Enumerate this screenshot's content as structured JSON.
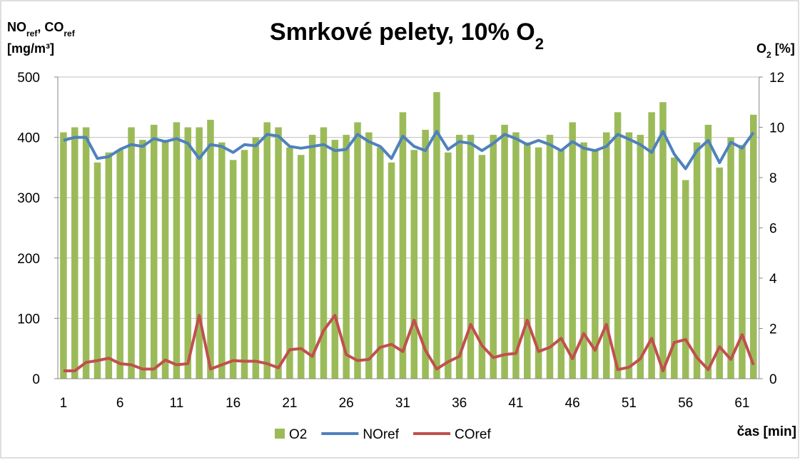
{
  "chart_data": {
    "type": "bar_line",
    "title": [
      {
        "text": "Smrkové pelety, 10% O"
      },
      {
        "text": "2",
        "sub": true
      }
    ],
    "ylabel": [
      [
        {
          "text": "NO"
        },
        {
          "text": "ref",
          "sub": true
        },
        {
          "text": ", CO"
        },
        {
          "text": "ref",
          "sub": true
        }
      ],
      [
        {
          "text": "[mg/m³]"
        }
      ]
    ],
    "y2label": [
      {
        "text": "O"
      },
      {
        "text": "2",
        "sub": true
      },
      {
        "text": " [%]"
      }
    ],
    "xlabel": "čas [min]",
    "categories": [
      1,
      null,
      null,
      null,
      null,
      6,
      null,
      null,
      null,
      null,
      11,
      null,
      null,
      null,
      null,
      16,
      null,
      null,
      null,
      null,
      21,
      null,
      null,
      null,
      null,
      26,
      null,
      null,
      null,
      null,
      31,
      null,
      null,
      null,
      null,
      36,
      null,
      null,
      null,
      null,
      41,
      null,
      null,
      null,
      null,
      46,
      null,
      null,
      null,
      null,
      51,
      null,
      null,
      null,
      null,
      56,
      null,
      null,
      null,
      null,
      61,
      null
    ],
    "ylim": [
      0,
      500
    ],
    "yticks": [
      0,
      100,
      200,
      300,
      400,
      500
    ],
    "y2lim": [
      0,
      12
    ],
    "y2ticks": [
      0,
      2,
      4,
      6,
      8,
      10,
      12
    ],
    "grid": true,
    "legend": "bottom",
    "series": [
      {
        "name": "O2",
        "type": "bar",
        "axis": "y2",
        "color": "#9bbb59",
        "values": [
          9.8,
          10.0,
          10.0,
          8.6,
          9.0,
          9.1,
          10.0,
          9.5,
          10.1,
          9.5,
          10.2,
          10.0,
          10.0,
          10.3,
          9.4,
          8.7,
          9.1,
          9.6,
          10.2,
          10.0,
          9.2,
          8.9,
          9.7,
          10.0,
          9.5,
          9.7,
          10.2,
          9.8,
          9.2,
          8.6,
          10.6,
          9.1,
          9.9,
          11.4,
          9.0,
          9.7,
          9.7,
          8.9,
          9.7,
          10.1,
          9.8,
          9.4,
          9.2,
          9.7,
          9.1,
          10.2,
          9.4,
          9.1,
          9.8,
          10.6,
          9.8,
          9.7,
          10.6,
          11.0,
          8.8,
          7.9,
          9.4,
          10.1,
          8.4,
          9.6,
          9.3,
          10.5
        ]
      },
      {
        "name": "NOref",
        "type": "line",
        "color": "#4f81bd",
        "values": [
          395,
          400,
          400,
          365,
          368,
          380,
          388,
          385,
          398,
          393,
          398,
          390,
          365,
          388,
          385,
          375,
          388,
          386,
          405,
          402,
          385,
          382,
          385,
          388,
          378,
          380,
          405,
          393,
          385,
          365,
          402,
          385,
          378,
          410,
          380,
          393,
          390,
          378,
          390,
          405,
          398,
          388,
          395,
          388,
          378,
          393,
          382,
          378,
          385,
          405,
          397,
          388,
          375,
          410,
          372,
          348,
          378,
          395,
          358,
          392,
          382,
          408
        ]
      },
      {
        "name": "COref",
        "type": "line",
        "color": "#c0504d",
        "values": [
          13,
          13,
          27,
          30,
          34,
          25,
          23,
          16,
          16,
          31,
          23,
          25,
          105,
          16,
          23,
          30,
          29,
          29,
          25,
          18,
          48,
          50,
          37,
          80,
          105,
          40,
          30,
          32,
          52,
          57,
          45,
          97,
          47,
          16,
          28,
          37,
          90,
          55,
          35,
          40,
          42,
          97,
          45,
          52,
          67,
          33,
          75,
          47,
          90,
          15,
          19,
          33,
          67,
          13,
          60,
          65,
          35,
          15,
          53,
          32,
          73,
          23
        ]
      }
    ]
  }
}
